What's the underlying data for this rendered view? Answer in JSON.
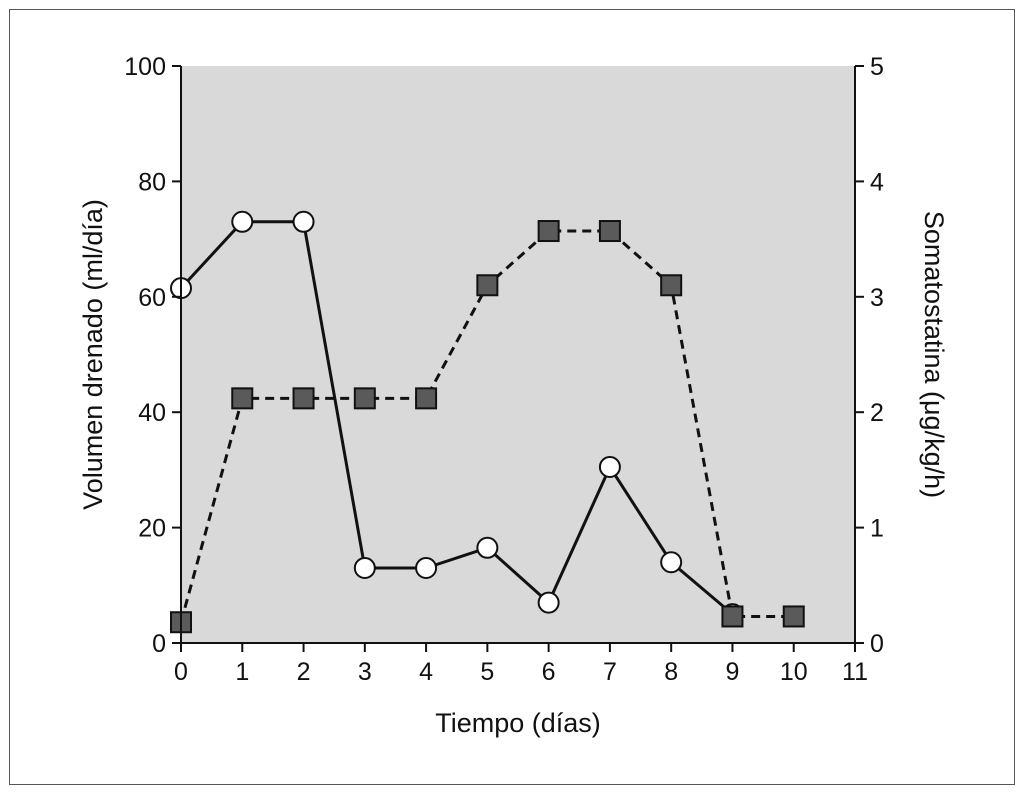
{
  "chart_data": {
    "type": "line",
    "xlabel": "Tiempo (días)",
    "ylabel_left": "Volumen drenado (ml/día)",
    "ylabel_right": "Somatostatina (μg/kg/h)",
    "xlim": [
      0,
      11
    ],
    "ylim_left": [
      0,
      100
    ],
    "ylim_right": [
      0,
      5
    ],
    "x_ticks": [
      "0",
      "1",
      "2",
      "3",
      "4",
      "5",
      "6",
      "7",
      "8",
      "9",
      "10",
      "11"
    ],
    "y_ticks_left": [
      "0",
      "20",
      "40",
      "60",
      "80",
      "100"
    ],
    "y_ticks_right": [
      "0",
      "1",
      "2",
      "3",
      "4",
      "5"
    ],
    "grid": false,
    "plot_background": "#d9d9d9",
    "series": [
      {
        "axis": "left",
        "marker": "open-circle",
        "line_style": "solid",
        "color": "#111111",
        "x": [
          0,
          1,
          2,
          3,
          4,
          5,
          6,
          7,
          8,
          9
        ],
        "values": [
          61.5,
          73,
          73,
          13,
          13,
          16.5,
          7,
          30.5,
          14,
          5
        ]
      },
      {
        "axis": "right",
        "marker": "filled-square",
        "line_style": "dashed",
        "color": "#5a5a5a",
        "x": [
          0,
          1,
          2,
          3,
          4,
          5,
          6,
          7,
          8,
          9,
          10
        ],
        "values": [
          0.18,
          2.12,
          2.12,
          2.12,
          2.12,
          3.1,
          3.57,
          3.57,
          3.1,
          0.23,
          0.23
        ]
      }
    ]
  }
}
